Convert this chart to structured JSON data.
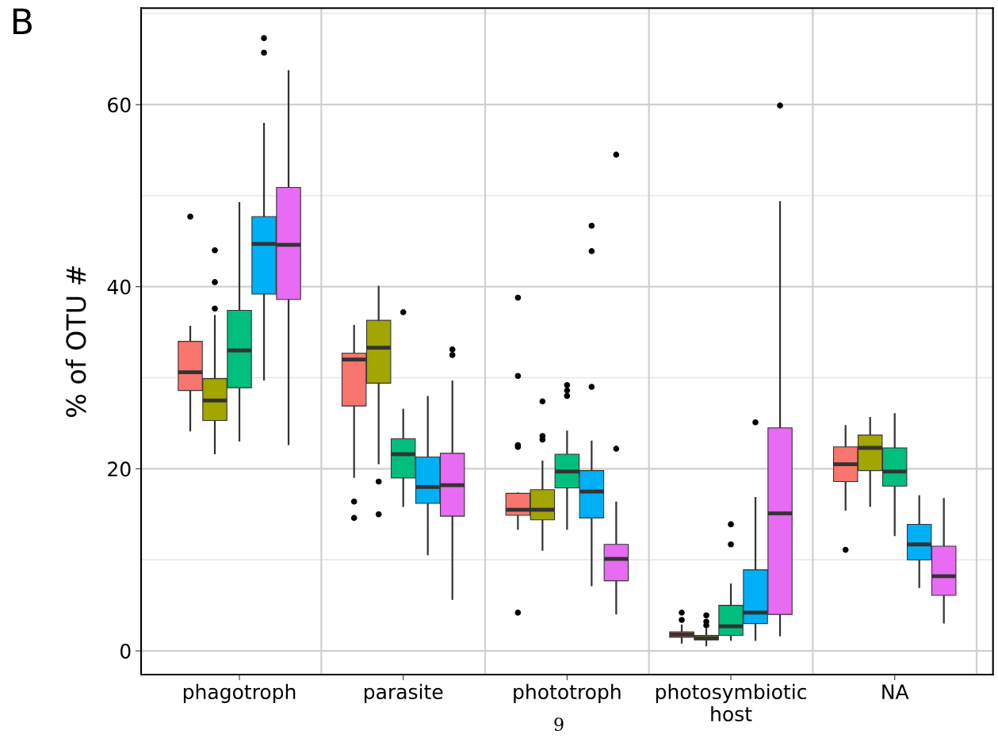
{
  "chart_data": {
    "type": "box",
    "ylabel": "% of OTU #",
    "categories": [
      "phagotroph",
      "parasite",
      "phototroph",
      "photosymbiotic\nhost",
      "NA"
    ],
    "ylim": [
      -2.6,
      70.6
    ],
    "yticks": [
      0,
      20,
      40,
      60
    ],
    "grid": true,
    "legend": false,
    "annotations": [
      "B",
      "9"
    ],
    "series": [
      {
        "color": "#f8766d",
        "boxes": [
          {
            "low": 24.2,
            "q1": 28.6,
            "median": 30.6,
            "q3": 34.0,
            "high": 35.6,
            "outliers": [
              47.7
            ]
          },
          {
            "low": 19.1,
            "q1": 26.9,
            "median": 32.0,
            "q3": 32.7,
            "high": 35.7,
            "outliers": [
              16.4,
              14.6
            ]
          },
          {
            "low": 13.4,
            "q1": 14.9,
            "median": 15.5,
            "q3": 17.3,
            "high": 17.3,
            "outliers": [
              38.8,
              30.2,
              22.6,
              22.4,
              4.2
            ]
          },
          {
            "low": 0.9,
            "q1": 1.5,
            "median": 1.8,
            "q3": 2.1,
            "high": 2.8,
            "outliers": [
              4.2,
              3.4
            ]
          },
          {
            "low": 15.5,
            "q1": 18.6,
            "median": 20.5,
            "q3": 22.4,
            "high": 24.7,
            "outliers": [
              11.1
            ]
          }
        ]
      },
      {
        "color": "#a3a500",
        "boxes": [
          {
            "low": 21.7,
            "q1": 25.3,
            "median": 27.5,
            "q3": 29.9,
            "high": 36.8,
            "outliers": [
              44.0,
              40.5,
              37.6
            ]
          },
          {
            "low": 20.6,
            "q1": 29.4,
            "median": 33.3,
            "q3": 36.3,
            "high": 40.0,
            "outliers": [
              18.6,
              15.0
            ]
          },
          {
            "low": 11.1,
            "q1": 14.4,
            "median": 15.5,
            "q3": 17.7,
            "high": 20.8,
            "outliers": [
              27.4,
              23.6,
              23.2
            ]
          },
          {
            "low": 0.6,
            "q1": 1.2,
            "median": 1.4,
            "q3": 1.7,
            "high": 2.4,
            "outliers": [
              3.9,
              3.2,
              2.8
            ]
          },
          {
            "low": 15.9,
            "q1": 19.8,
            "median": 22.3,
            "q3": 23.7,
            "high": 25.6
          }
        ]
      },
      {
        "color": "#00bf7d",
        "boxes": [
          {
            "low": 23.1,
            "q1": 28.9,
            "median": 33.0,
            "q3": 37.4,
            "high": 49.2
          },
          {
            "low": 15.9,
            "q1": 19.0,
            "median": 21.6,
            "q3": 23.3,
            "high": 26.5,
            "outliers": [
              37.2
            ]
          },
          {
            "low": 13.4,
            "q1": 17.9,
            "median": 19.7,
            "q3": 21.6,
            "high": 24.1,
            "outliers": [
              29.2,
              28.6,
              28.0
            ]
          },
          {
            "low": 1.2,
            "q1": 1.7,
            "median": 2.7,
            "q3": 5.0,
            "high": 7.3,
            "outliers": [
              13.9,
              11.7
            ]
          },
          {
            "low": 12.7,
            "q1": 18.1,
            "median": 19.7,
            "q3": 22.3,
            "high": 26.0
          }
        ]
      },
      {
        "color": "#00b0f6",
        "boxes": [
          {
            "low": 29.8,
            "q1": 39.2,
            "median": 44.7,
            "q3": 47.7,
            "high": 57.9,
            "outliers": [
              67.3,
              65.7
            ]
          },
          {
            "low": 10.6,
            "q1": 16.2,
            "median": 18.0,
            "q3": 21.3,
            "high": 27.9
          },
          {
            "low": 7.2,
            "q1": 14.6,
            "median": 17.5,
            "q3": 19.8,
            "high": 23.0,
            "outliers": [
              46.7,
              43.9,
              29.0
            ]
          },
          {
            "low": 1.2,
            "q1": 3.0,
            "median": 4.2,
            "q3": 8.9,
            "high": 16.8,
            "outliers": [
              25.1
            ]
          },
          {
            "low": 7.0,
            "q1": 10.0,
            "median": 11.7,
            "q3": 13.9,
            "high": 17.0
          }
        ]
      },
      {
        "color": "#e76bf3",
        "boxes": [
          {
            "low": 22.7,
            "q1": 38.6,
            "median": 44.6,
            "q3": 50.9,
            "high": 63.7
          },
          {
            "low": 5.7,
            "q1": 14.8,
            "median": 18.2,
            "q3": 21.7,
            "high": 29.6,
            "outliers": [
              33.1,
              32.5
            ]
          },
          {
            "low": 4.1,
            "q1": 7.7,
            "median": 10.1,
            "q3": 11.7,
            "high": 16.3,
            "outliers": [
              54.5,
              22.2
            ]
          },
          {
            "low": 1.7,
            "q1": 4.0,
            "median": 15.1,
            "q3": 24.5,
            "high": 49.3,
            "outliers": [
              59.9
            ]
          },
          {
            "low": 3.1,
            "q1": 6.1,
            "median": 8.2,
            "q3": 11.5,
            "high": 16.7
          }
        ]
      }
    ]
  }
}
